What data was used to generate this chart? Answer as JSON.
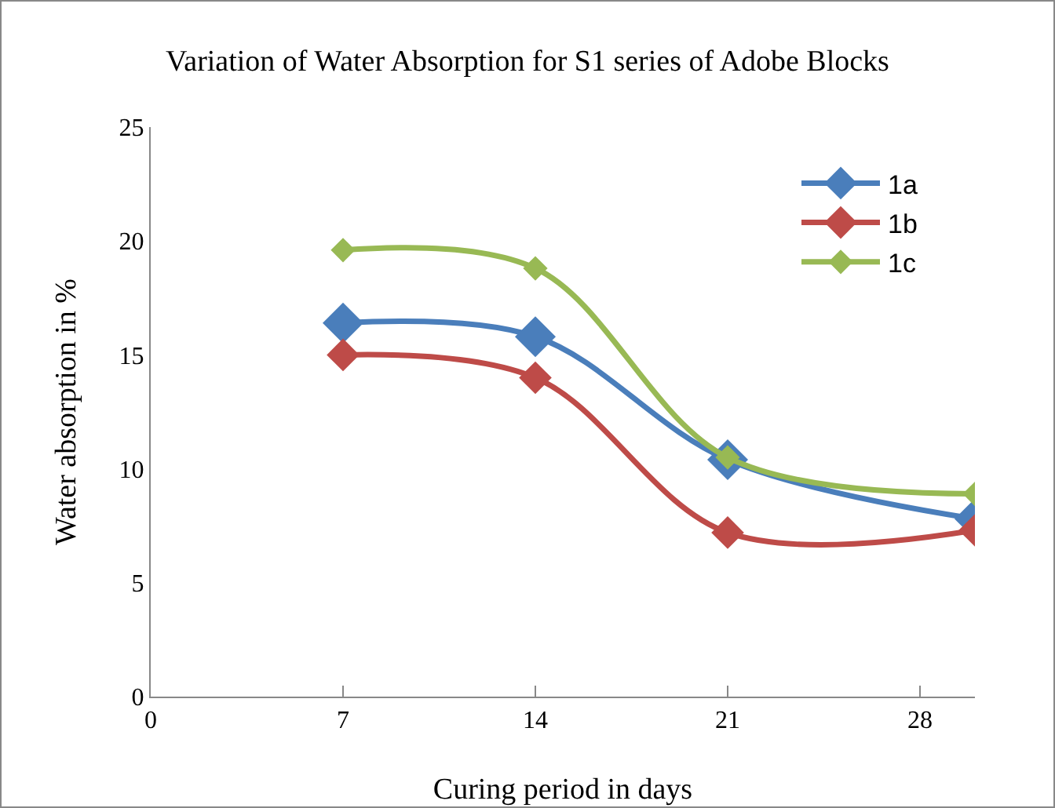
{
  "chart_data": {
    "type": "line",
    "title": "Variation of Water Absorption for S1 series of Adobe Blocks",
    "xlabel": "Curing period in days",
    "ylabel": "Water absorption in %",
    "x": [
      7,
      14,
      21,
      30
    ],
    "series": [
      {
        "name": "1a",
        "color": "#4a7ebb",
        "values": [
          16.4,
          15.8,
          10.4,
          7.8
        ]
      },
      {
        "name": "1b",
        "color": "#be4b48",
        "values": [
          15.0,
          14.0,
          7.2,
          7.3
        ]
      },
      {
        "name": "1c",
        "color": "#98b954",
        "values": [
          19.6,
          18.8,
          10.5,
          8.9
        ]
      }
    ],
    "xlim": [
      0,
      30
    ],
    "xticks": [
      0,
      7,
      14,
      21,
      28
    ],
    "ylim": [
      0,
      25
    ],
    "yticks": [
      0,
      5,
      10,
      15,
      20,
      25
    ],
    "grid": false,
    "legend": "top right",
    "marker": "diamond",
    "line_style": "solid"
  }
}
